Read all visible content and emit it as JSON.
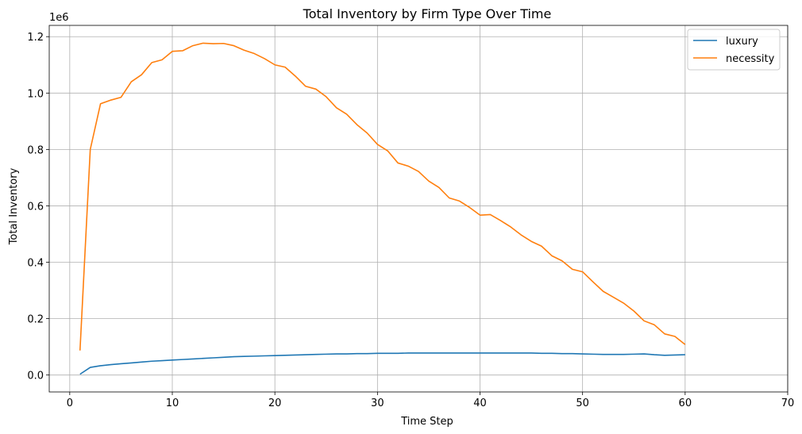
{
  "chart_data": {
    "type": "line",
    "title": "Total Inventory by Firm Type Over Time",
    "xlabel": "Time Step",
    "ylabel": "Total Inventory",
    "y_offset_text": "1e6",
    "xlim": [
      -2,
      70
    ],
    "ylim": [
      -0.06,
      1.24
    ],
    "x_ticks": [
      0,
      10,
      20,
      30,
      40,
      50,
      60,
      70
    ],
    "x_tick_labels": [
      "0",
      "10",
      "20",
      "30",
      "40",
      "50",
      "60",
      "70"
    ],
    "y_ticks": [
      0.0,
      0.2,
      0.4,
      0.6,
      0.8,
      1.0,
      1.2
    ],
    "y_tick_labels": [
      "0.0",
      "0.2",
      "0.4",
      "0.6",
      "0.8",
      "1.0",
      "1.2"
    ],
    "grid": true,
    "legend_position": "top-right",
    "series": [
      {
        "name": "luxury",
        "color": "#1f77b4",
        "x": [
          1,
          2,
          3,
          4,
          5,
          6,
          7,
          8,
          9,
          10,
          11,
          12,
          13,
          14,
          15,
          16,
          17,
          18,
          19,
          20,
          21,
          22,
          23,
          24,
          25,
          26,
          27,
          28,
          29,
          30,
          31,
          32,
          33,
          34,
          35,
          36,
          37,
          38,
          39,
          40,
          41,
          42,
          43,
          44,
          45,
          46,
          47,
          48,
          49,
          50,
          51,
          52,
          53,
          54,
          55,
          56,
          57,
          58,
          59,
          60
        ],
        "values": [
          0.003,
          0.027,
          0.033,
          0.037,
          0.04,
          0.043,
          0.046,
          0.049,
          0.051,
          0.053,
          0.055,
          0.057,
          0.059,
          0.061,
          0.063,
          0.065,
          0.066,
          0.067,
          0.068,
          0.069,
          0.07,
          0.071,
          0.072,
          0.073,
          0.074,
          0.075,
          0.075,
          0.076,
          0.076,
          0.077,
          0.077,
          0.077,
          0.078,
          0.078,
          0.078,
          0.078,
          0.078,
          0.078,
          0.078,
          0.078,
          0.078,
          0.078,
          0.078,
          0.078,
          0.078,
          0.077,
          0.077,
          0.076,
          0.076,
          0.075,
          0.074,
          0.073,
          0.073,
          0.073,
          0.074,
          0.075,
          0.072,
          0.07,
          0.071,
          0.072
        ]
      },
      {
        "name": "necessity",
        "color": "#ff7f0e",
        "x": [
          1,
          2,
          3,
          4,
          5,
          6,
          7,
          8,
          9,
          10,
          11,
          12,
          13,
          14,
          15,
          16,
          17,
          18,
          19,
          20,
          21,
          22,
          23,
          24,
          25,
          26,
          27,
          28,
          29,
          30,
          31,
          32,
          33,
          34,
          35,
          36,
          37,
          38,
          39,
          40,
          41,
          42,
          43,
          44,
          45,
          46,
          47,
          48,
          49,
          50,
          51,
          52,
          53,
          54,
          55,
          56,
          57,
          58,
          59,
          60
        ],
        "values": [
          0.087,
          0.8,
          0.962,
          0.975,
          0.985,
          1.04,
          1.065,
          1.108,
          1.118,
          1.148,
          1.15,
          1.168,
          1.177,
          1.175,
          1.176,
          1.168,
          1.152,
          1.14,
          1.122,
          1.1,
          1.092,
          1.06,
          1.024,
          1.014,
          0.987,
          0.948,
          0.925,
          0.888,
          0.858,
          0.818,
          0.795,
          0.752,
          0.741,
          0.722,
          0.688,
          0.665,
          0.628,
          0.617,
          0.594,
          0.567,
          0.569,
          0.548,
          0.525,
          0.497,
          0.474,
          0.457,
          0.423,
          0.405,
          0.375,
          0.366,
          0.331,
          0.297,
          0.276,
          0.255,
          0.227,
          0.192,
          0.178,
          0.146,
          0.137,
          0.108
        ]
      }
    ]
  }
}
